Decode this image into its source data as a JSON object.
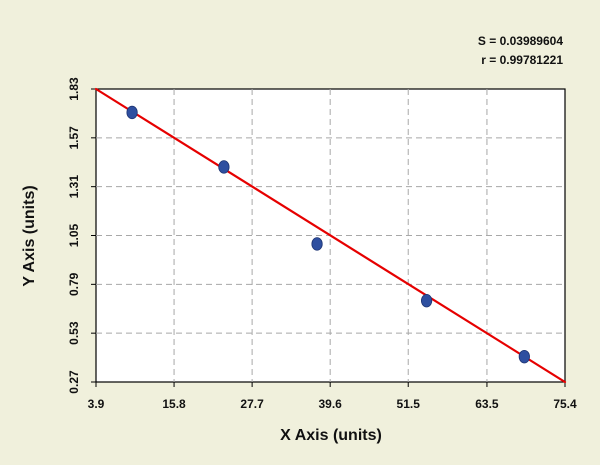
{
  "chart_data": {
    "type": "scatter",
    "xlabel": "X Axis (units)",
    "ylabel": "Y Axis (units)",
    "xlim": [
      3.9,
      75.4
    ],
    "ylim": [
      0.27,
      1.83
    ],
    "xticks": [
      "3.9",
      "15.8",
      "27.7",
      "39.6",
      "51.5",
      "63.5",
      "75.4"
    ],
    "yticks": [
      "0.27",
      "0.53",
      "0.79",
      "1.05",
      "1.31",
      "1.57",
      "1.83"
    ],
    "grid": true,
    "statistics": {
      "s_label": "S = 0.03989604",
      "r_label": "r = 0.99781221"
    },
    "series": [
      {
        "type": "scatter",
        "x": [
          9.4,
          23.4,
          37.6,
          54.3,
          69.2
        ],
        "y": [
          1.705,
          1.415,
          1.005,
          0.703,
          0.405
        ]
      }
    ],
    "fit_line": {
      "x": [
        3.9,
        75.4
      ],
      "y": [
        1.83,
        0.27
      ]
    },
    "colors": {
      "background": "#f0f0dc",
      "plot_background": "#ffffff",
      "grid": "#a8a8a8",
      "line": "#e60000",
      "points": "#2e4fa0"
    }
  }
}
